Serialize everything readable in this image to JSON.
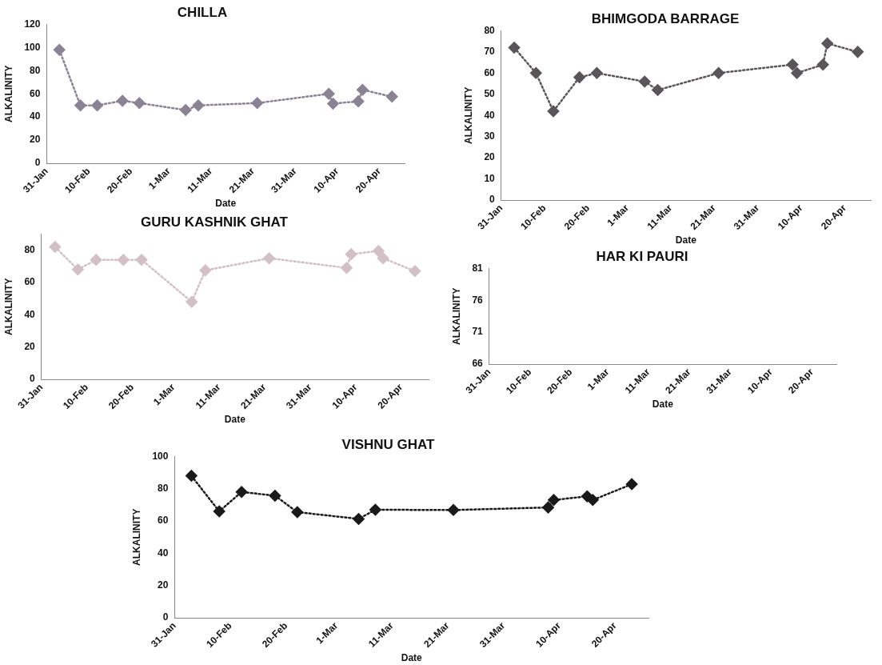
{
  "chart_data": [
    {
      "type": "line",
      "title": "CHILLA",
      "xlabel": "Date",
      "ylabel": "ALKALINITY",
      "marker": "diamond",
      "line_style": "dotted",
      "grid": false,
      "legend": false,
      "x": [
        "--02-03",
        "--02-08",
        "--02-12",
        "--02-18",
        "--02-22",
        "--03-05",
        "--03-08",
        "--03-22",
        "--04-08",
        "--04-09",
        "--04-15",
        "--04-16",
        "--04-23"
      ],
      "series": [
        {
          "color": "#8a8394",
          "values": [
            98,
            50,
            50,
            54,
            52,
            46,
            50,
            52,
            60,
            51.5,
            53.5,
            63.5,
            57.5
          ]
        }
      ],
      "xlim": [
        "--01-31",
        "--04-26"
      ],
      "xticks": [
        {
          "value": "--01-31",
          "label": "31-Jan"
        },
        {
          "value": "--02-10",
          "label": "10-Feb"
        },
        {
          "value": "--02-20",
          "label": "20-Feb"
        },
        {
          "value": "--03-01",
          "label": "1-Mar"
        },
        {
          "value": "--03-11",
          "label": "11-Mar"
        },
        {
          "value": "--03-21",
          "label": "21-Mar"
        },
        {
          "value": "--03-31",
          "label": "31-Mar"
        },
        {
          "value": "--04-10",
          "label": "10-Apr"
        },
        {
          "value": "--04-20",
          "label": "20-Apr"
        }
      ],
      "ylim": [
        0,
        120
      ],
      "yticks": [
        0,
        20,
        40,
        60,
        80,
        100,
        120
      ]
    },
    {
      "type": "line",
      "title": "BHIMGODA BARRAGE",
      "xlabel": "Date",
      "ylabel": "ALKALINITY",
      "marker": "diamond",
      "line_style": "dotted",
      "grid": false,
      "legend": false,
      "x": [
        "--02-03",
        "--02-08",
        "--02-12",
        "--02-18",
        "--02-22",
        "--03-05",
        "--03-08",
        "--03-22",
        "--04-08",
        "--04-09",
        "--04-15",
        "--04-16",
        "--04-23"
      ],
      "series": [
        {
          "color": "#5a5558",
          "values": [
            72,
            60,
            42,
            58,
            60,
            56,
            52,
            60,
            64,
            60,
            64,
            74,
            70
          ]
        }
      ],
      "xlim": [
        "--01-31",
        "--04-26"
      ],
      "xticks": [
        {
          "value": "--01-31",
          "label": "31-Jan"
        },
        {
          "value": "--02-10",
          "label": "10-Feb"
        },
        {
          "value": "--02-20",
          "label": "20-Feb"
        },
        {
          "value": "--03-01",
          "label": "1-Mar"
        },
        {
          "value": "--03-11",
          "label": "11-Mar"
        },
        {
          "value": "--03-21",
          "label": "21-Mar"
        },
        {
          "value": "--03-31",
          "label": "31-Mar"
        },
        {
          "value": "--04-10",
          "label": "10-Apr"
        },
        {
          "value": "--04-20",
          "label": "20-Apr"
        }
      ],
      "ylim": [
        0,
        80
      ],
      "yticks": [
        0,
        10,
        20,
        30,
        40,
        50,
        60,
        70,
        80
      ]
    },
    {
      "type": "line",
      "title": "GURU KASHNIK GHAT",
      "xlabel": "Date",
      "ylabel": "ALKALINITY",
      "marker": "diamond",
      "line_style": "dotted",
      "grid": false,
      "legend": false,
      "x": [
        "--02-03",
        "--02-08",
        "--02-12",
        "--02-18",
        "--02-22",
        "--03-05",
        "--03-08",
        "--03-22",
        "--04-08",
        "--04-09",
        "--04-15",
        "--04-16",
        "--04-23"
      ],
      "series": [
        {
          "color": "#d2c0c6",
          "values": [
            82,
            68,
            74,
            74,
            74,
            48,
            67.5,
            75,
            69,
            77.5,
            79.5,
            75,
            67
          ]
        }
      ],
      "xlim": [
        "--01-31",
        "--04-26"
      ],
      "xticks": [
        {
          "value": "--01-31",
          "label": "31-Jan"
        },
        {
          "value": "--02-10",
          "label": "10-Feb"
        },
        {
          "value": "--02-20",
          "label": "20-Feb"
        },
        {
          "value": "--03-01",
          "label": "1-Mar"
        },
        {
          "value": "--03-11",
          "label": "11-Mar"
        },
        {
          "value": "--03-21",
          "label": "21-Mar"
        },
        {
          "value": "--03-31",
          "label": "31-Mar"
        },
        {
          "value": "--04-10",
          "label": "10-Apr"
        },
        {
          "value": "--04-20",
          "label": "20-Apr"
        }
      ],
      "ylim": [
        0,
        90
      ],
      "yticks": [
        0,
        20,
        40,
        60,
        80
      ]
    },
    {
      "type": "line",
      "title": "HAR KI PAURI",
      "xlabel": "Date",
      "ylabel": "ALKALINITY",
      "grid": false,
      "legend": false,
      "xlim": [
        "--01-31",
        "--04-26"
      ],
      "xticks": [
        {
          "value": "--01-31",
          "label": "31-Jan"
        },
        {
          "value": "--02-10",
          "label": "10-Feb"
        },
        {
          "value": "--02-20",
          "label": "20-Feb"
        },
        {
          "value": "--03-01",
          "label": "1-Mar"
        },
        {
          "value": "--03-11",
          "label": "11-Mar"
        },
        {
          "value": "--03-21",
          "label": "21-Mar"
        },
        {
          "value": "--03-31",
          "label": "31-Mar"
        },
        {
          "value": "--04-10",
          "label": "10-Apr"
        },
        {
          "value": "--04-20",
          "label": "20-Apr"
        }
      ],
      "ylim": [
        66,
        81
      ],
      "yticks": [
        66,
        71,
        76,
        81
      ]
    },
    {
      "type": "line",
      "title": "VISHNU GHAT",
      "xlabel": "Date",
      "ylabel": "ALKALINITY",
      "marker": "diamond",
      "line_style": "dotted",
      "grid": false,
      "legend": false,
      "x": [
        "--02-03",
        "--02-08",
        "--02-12",
        "--02-18",
        "--02-22",
        "--03-05",
        "--03-08",
        "--03-22",
        "--04-08",
        "--04-09",
        "--04-15",
        "--04-16",
        "--04-23"
      ],
      "series": [
        {
          "color": "#1a1a1a",
          "values": [
            88,
            66,
            78,
            75.7,
            65.5,
            61.3,
            67,
            66.8,
            68.4,
            73,
            75.3,
            73,
            82.8
          ]
        }
      ],
      "xlim": [
        "--01-31",
        "--04-26"
      ],
      "xticks": [
        {
          "value": "--01-31",
          "label": "31-Jan"
        },
        {
          "value": "--02-10",
          "label": "10-Feb"
        },
        {
          "value": "--02-20",
          "label": "20-Feb"
        },
        {
          "value": "--03-01",
          "label": "1-Mar"
        },
        {
          "value": "--03-11",
          "label": "11-Mar"
        },
        {
          "value": "--03-21",
          "label": "21-Mar"
        },
        {
          "value": "--03-31",
          "label": "31-Mar"
        },
        {
          "value": "--04-10",
          "label": "10-Apr"
        },
        {
          "value": "--04-20",
          "label": "20-Apr"
        }
      ],
      "ylim": [
        0,
        100
      ],
      "yticks": [
        0,
        20,
        40,
        60,
        80,
        100
      ]
    }
  ]
}
